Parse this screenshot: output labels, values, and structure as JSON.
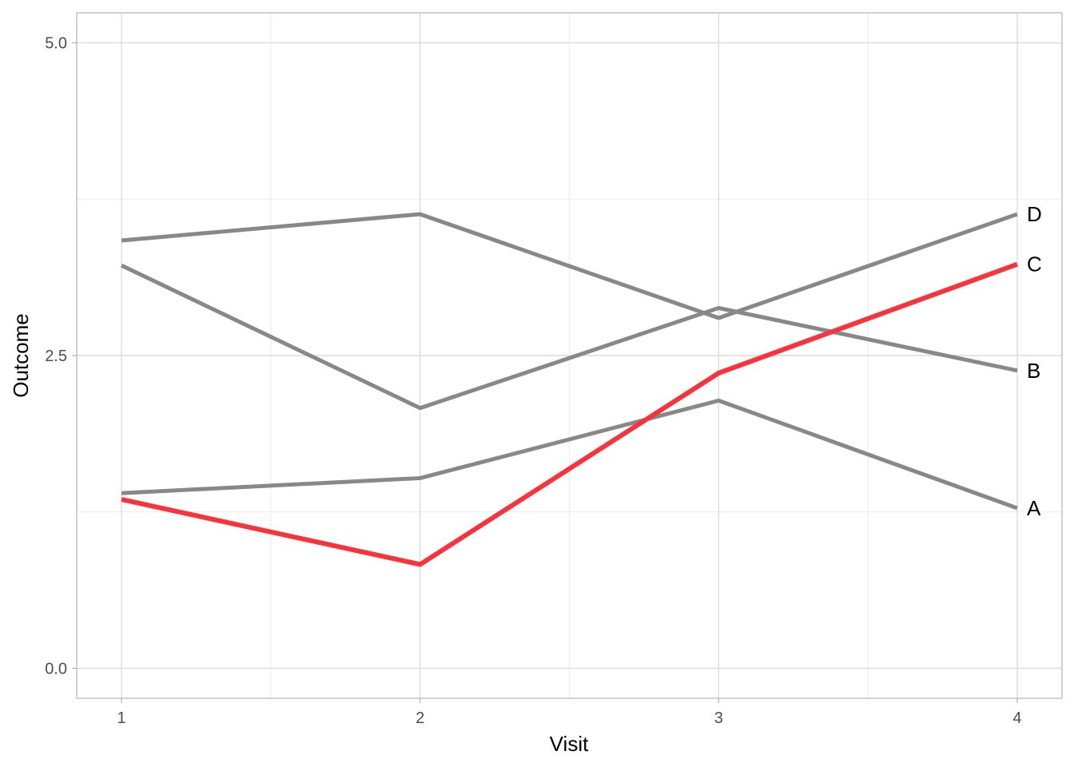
{
  "chart_data": {
    "type": "line",
    "xlabel": "Visit",
    "ylabel": "Outcome",
    "x": [
      1,
      2,
      3,
      4
    ],
    "xlim": [
      0.85,
      4.15
    ],
    "ylim": [
      -0.24,
      5.24
    ],
    "x_ticks": [
      1,
      2,
      3,
      4
    ],
    "x_tick_labels": [
      "1",
      "2",
      "3",
      "4"
    ],
    "y_ticks": [
      0,
      2.5,
      5
    ],
    "y_tick_labels": [
      "0.0",
      "2.5",
      "5.0"
    ],
    "y_minor_ticks": [
      1.25,
      3.75
    ],
    "x_minor_ticks": [
      1.5,
      2.5,
      3.5
    ],
    "grid": true,
    "highlight_color": "#f8333c",
    "base_color": "#888888",
    "series": [
      {
        "name": "A",
        "values": [
          1.4,
          1.52,
          2.14,
          1.28
        ],
        "highlight": false
      },
      {
        "name": "B",
        "values": [
          3.22,
          2.08,
          2.88,
          2.38
        ],
        "highlight": false
      },
      {
        "name": "C",
        "values": [
          1.35,
          0.83,
          2.36,
          3.23
        ],
        "highlight": true
      },
      {
        "name": "D",
        "values": [
          3.42,
          3.63,
          2.8,
          3.63
        ],
        "highlight": false
      }
    ]
  }
}
